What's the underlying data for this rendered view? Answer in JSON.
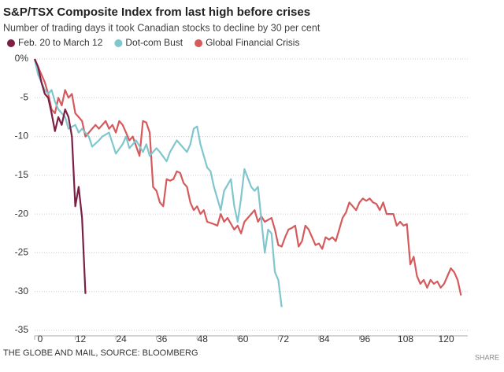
{
  "chart_data": {
    "type": "line",
    "title": "S&P/TSX Composite Index from last high before crises",
    "subtitle": "Number of trading days it took Canadian stocks to decline by 30 per cent",
    "source": "THE GLOBE AND MAIL, SOURCE: BLOOMBERG",
    "share": "SHARE",
    "xlim": [
      0,
      128
    ],
    "xticks": [
      0,
      12,
      24,
      36,
      48,
      60,
      72,
      84,
      96,
      108,
      120
    ],
    "ylim": [
      -35,
      0
    ],
    "yticks": [
      {
        "value": 0,
        "label": "0%"
      },
      -5,
      -10,
      -15,
      -20,
      -25,
      -30,
      -35
    ],
    "grid": true,
    "legend": "top-left",
    "series": [
      {
        "name": "Feb. 20 to March 12",
        "color": "#7b1f45",
        "x": [
          0,
          1,
          2,
          3,
          4,
          5,
          6,
          7,
          8,
          9,
          10,
          11,
          12,
          13,
          14,
          15
        ],
        "values": [
          0,
          -1,
          -3,
          -4.5,
          -5,
          -7,
          -9.3,
          -7.5,
          -8.5,
          -6.5,
          -7.5,
          -10,
          -19,
          -16.5,
          -20.5,
          -30.3
        ]
      },
      {
        "name": "Dot-com Bust",
        "color": "#7fc6cd",
        "x": [
          0,
          1,
          3,
          4,
          5,
          6,
          7,
          9,
          10,
          12,
          13,
          14,
          16,
          17,
          19,
          20,
          22,
          24,
          26,
          27,
          28,
          30,
          32,
          33,
          34,
          36,
          37,
          39,
          40,
          42,
          43,
          45,
          46,
          47,
          48,
          49,
          51,
          52,
          53,
          55,
          56,
          58,
          59,
          60,
          61,
          62,
          64,
          65,
          66,
          68,
          69,
          70,
          71,
          72,
          73
        ],
        "values": [
          0,
          -2,
          -4,
          -4.5,
          -4,
          -5.5,
          -6.5,
          -7.5,
          -9,
          -8.5,
          -9.5,
          -9,
          -10,
          -11.3,
          -10.5,
          -10,
          -9.5,
          -12.2,
          -11,
          -10,
          -11.5,
          -10.5,
          -12,
          -11,
          -12.5,
          -11.5,
          -12,
          -13.2,
          -12,
          -10.5,
          -11,
          -12,
          -11,
          -9,
          -8.7,
          -11,
          -14,
          -14.5,
          -16.5,
          -19.5,
          -17,
          -15.5,
          -19,
          -21,
          -18,
          -14.2,
          -16.5,
          -17,
          -16.5,
          -25,
          -22,
          -22.5,
          -27.5,
          -28.5,
          -32
        ]
      },
      {
        "name": "Global Financial Crisis",
        "color": "#d65a5c",
        "x": [
          0,
          1,
          3,
          4,
          5,
          6,
          7,
          8,
          9,
          10,
          11,
          12,
          13,
          14,
          15,
          17,
          18,
          19,
          20,
          21,
          22,
          23,
          24,
          25,
          26,
          27,
          28,
          29,
          31,
          32,
          33,
          34,
          35,
          36,
          37,
          38,
          39,
          40,
          41,
          42,
          43,
          44,
          45,
          46,
          47,
          48,
          49,
          50,
          51,
          53,
          54,
          55,
          56,
          57,
          59,
          60,
          61,
          62,
          64,
          65,
          66,
          67,
          68,
          70,
          71,
          72,
          73,
          74,
          75,
          76,
          77,
          78,
          79,
          80,
          81,
          82,
          83,
          84,
          85,
          86,
          87,
          88,
          89,
          90,
          91,
          92,
          93,
          94,
          95,
          96,
          97,
          98,
          99,
          100,
          101,
          102,
          103,
          104,
          106,
          107,
          108,
          109,
          110,
          111,
          112,
          113,
          114,
          115,
          116,
          117,
          118,
          119,
          120,
          121,
          122,
          123,
          124,
          125,
          126
        ],
        "values": [
          0,
          -1,
          -3,
          -4.5,
          -6.5,
          -7,
          -5,
          -6,
          -4,
          -5,
          -4.5,
          -7,
          -7.5,
          -8,
          -10,
          -9,
          -8.5,
          -9,
          -8.5,
          -8,
          -9,
          -8.5,
          -9.5,
          -8,
          -8.5,
          -9.5,
          -10.5,
          -10,
          -12.5,
          -8,
          -8.2,
          -9.5,
          -16.5,
          -17,
          -18.5,
          -19,
          -15.5,
          -15.7,
          -15.5,
          -14.5,
          -14.7,
          -16,
          -16.5,
          -18.5,
          -19.5,
          -19,
          -20,
          -19.5,
          -21,
          -21.3,
          -21.5,
          -20,
          -21,
          -20.5,
          -22,
          -21.5,
          -22.5,
          -21,
          -20,
          -19.5,
          -21,
          -20.3,
          -21,
          -20.5,
          -22,
          -24,
          -24.2,
          -23,
          -22,
          -21.8,
          -21.5,
          -24.2,
          -23.5,
          -21.5,
          -22,
          -23,
          -24,
          -23.8,
          -24.5,
          -23,
          -23.3,
          -23,
          -23.5,
          -22,
          -20.5,
          -19.8,
          -18.5,
          -19,
          -19.5,
          -18.5,
          -18,
          -18.3,
          -18,
          -18.5,
          -18.7,
          -19.5,
          -18.5,
          -20,
          -20,
          -21.5,
          -21,
          -21.5,
          -21.3,
          -26.5,
          -25.5,
          -28,
          -29,
          -28.5,
          -29.5,
          -28.5,
          -29,
          -28.7,
          -29.5,
          -29,
          -28,
          -27,
          -27.5,
          -28.5,
          -30.5
        ]
      }
    ]
  }
}
